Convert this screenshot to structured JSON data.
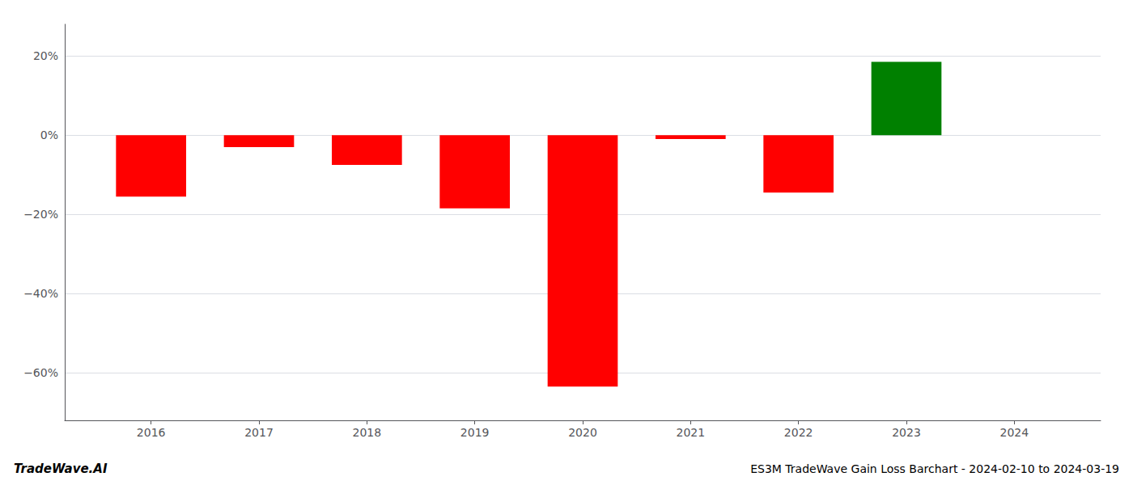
{
  "chart_data": {
    "type": "bar",
    "title": "ES3M TradeWave Gain Loss Barchart - 2024-02-10 to 2024-03-19",
    "annotations": [
      "TradeWave.AI"
    ],
    "x": [
      2016,
      2017,
      2018,
      2019,
      2020,
      2021,
      2022,
      2023
    ],
    "values": [
      -0.155,
      -0.03,
      -0.075,
      -0.185,
      -0.635,
      -0.01,
      -0.145,
      0.185
    ],
    "colors": [
      "red",
      "red",
      "red",
      "red",
      "red",
      "red",
      "red",
      "green"
    ],
    "xlim": [
      2015.2,
      2024.8
    ],
    "xticks": [
      2016,
      2017,
      2018,
      2019,
      2020,
      2021,
      2022,
      2023,
      2024
    ],
    "ylim": [
      -0.72,
      0.28
    ],
    "yticks": [
      {
        "value": -0.6,
        "label": "−60%"
      },
      {
        "value": -0.4,
        "label": "−40%"
      },
      {
        "value": -0.2,
        "label": "−20%"
      },
      {
        "value": 0.0,
        "label": "0%"
      },
      {
        "value": 0.2,
        "label": "20%"
      }
    ],
    "grid": true
  }
}
